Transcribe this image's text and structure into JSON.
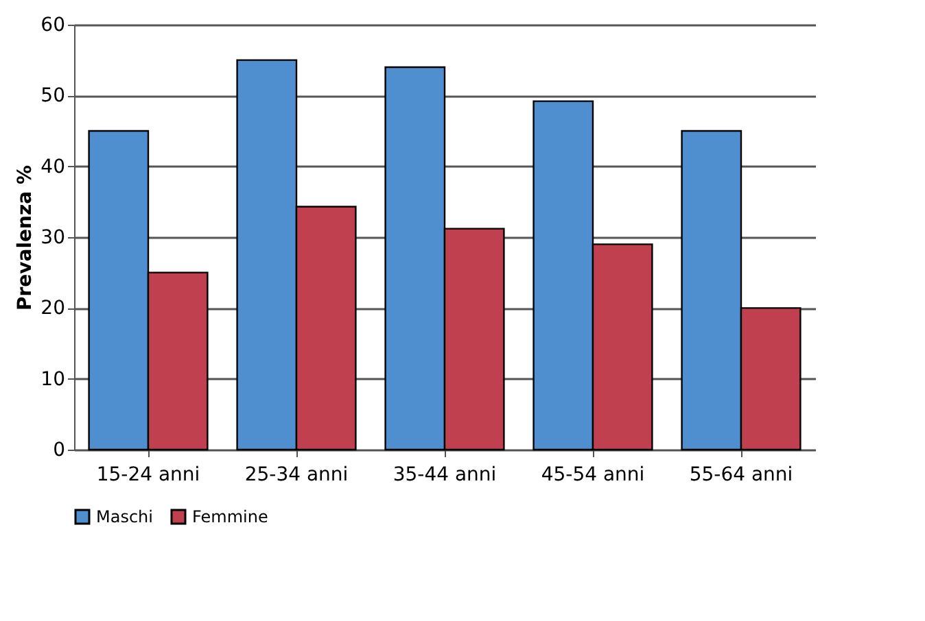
{
  "chart_data": {
    "type": "bar",
    "ylabel": "Prevalenza %",
    "categories": [
      "15-24 anni",
      "25-34 anni",
      "35-44 anni",
      "45-54 anni",
      "55-64 anni"
    ],
    "series": [
      {
        "name": "Maschi",
        "color": "#4f8fd0",
        "values": [
          45,
          55,
          54,
          49.2,
          45
        ]
      },
      {
        "name": "Femmine",
        "color": "#c0404f",
        "values": [
          25,
          34.3,
          31.2,
          29,
          20
        ]
      }
    ],
    "ylim": [
      0,
      60
    ],
    "yticks": [
      0,
      10,
      20,
      30,
      40,
      50,
      60
    ],
    "grid": "y",
    "legend": "bottom"
  }
}
